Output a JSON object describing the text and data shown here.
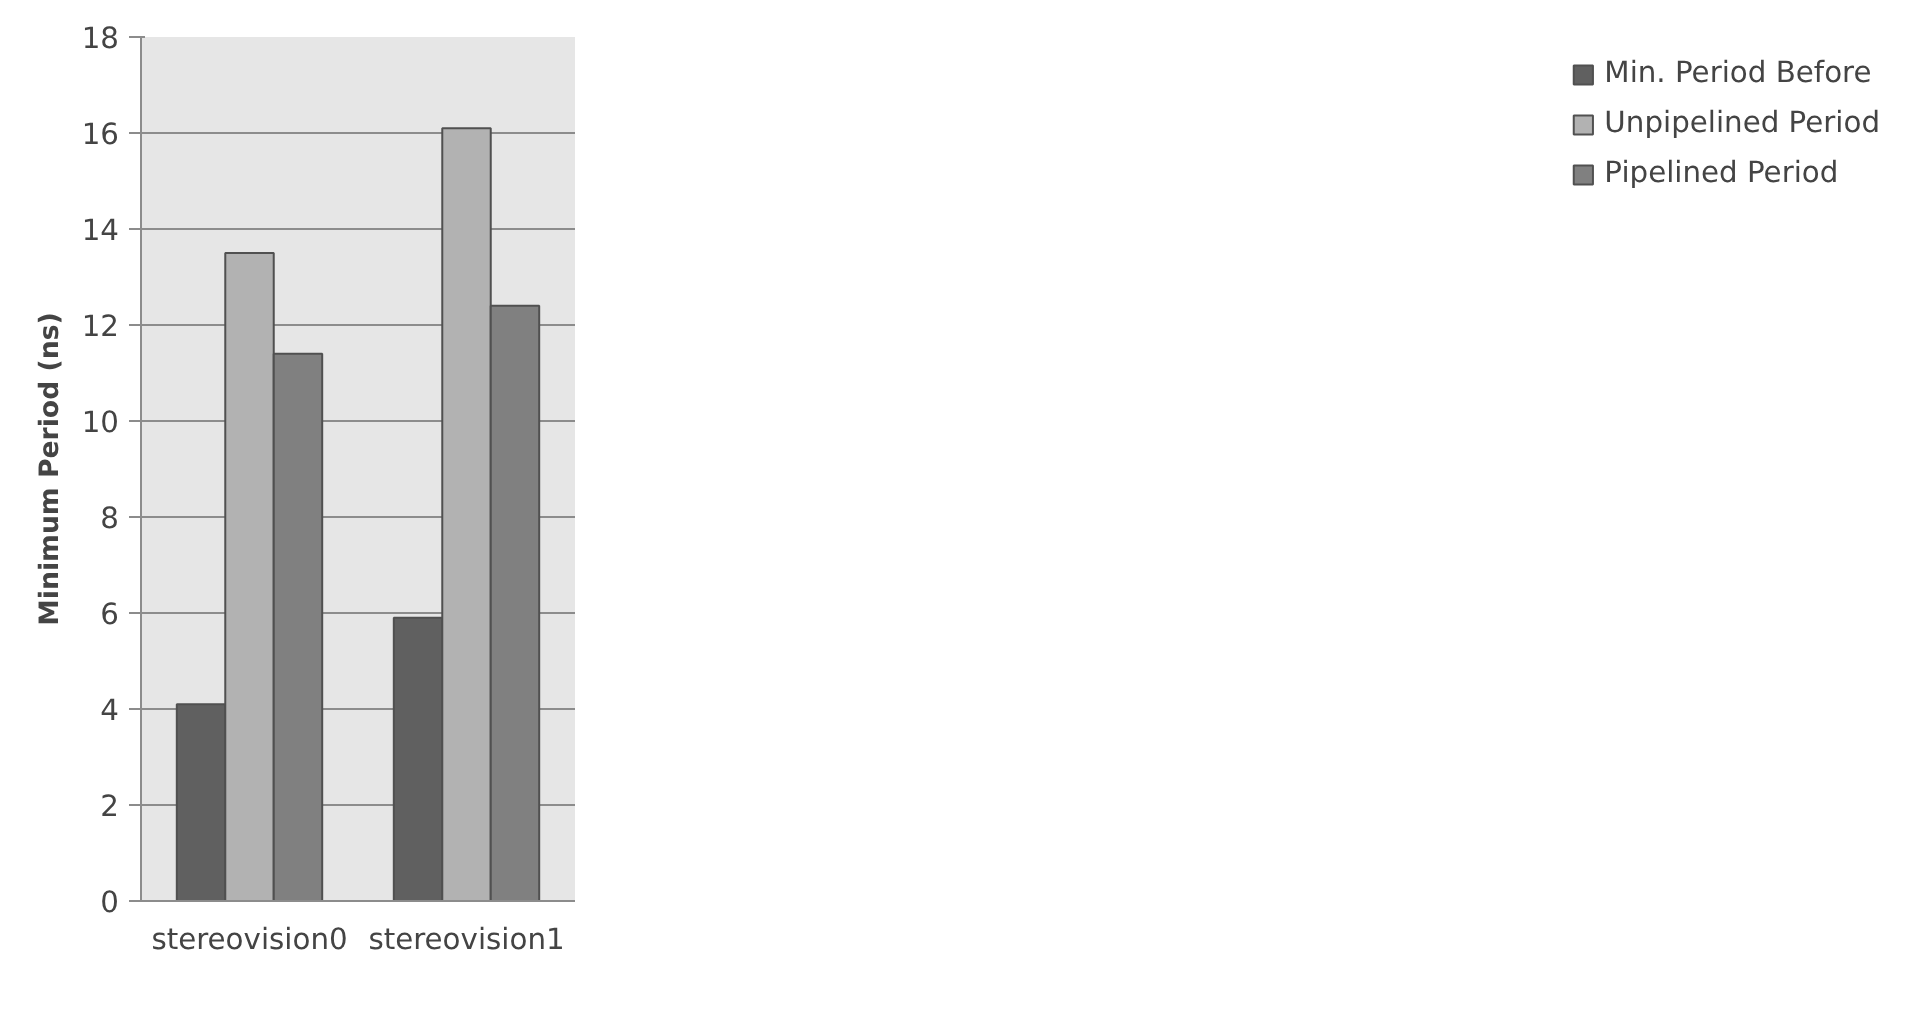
{
  "chart_data": {
    "type": "bar",
    "ylabel": "Minimum Period (ns)",
    "categories": [
      "stereovision0",
      "stereovision1"
    ],
    "series": [
      {
        "name": "Min. Period Before",
        "color": "#606060",
        "values": [
          4.1,
          5.9
        ]
      },
      {
        "name": "Unpipelined Period",
        "color": "#b2b2b2",
        "values": [
          13.5,
          16.1
        ]
      },
      {
        "name": "Pipelined Period",
        "color": "#808080",
        "values": [
          11.4,
          12.4
        ]
      }
    ],
    "ylim": [
      0,
      18
    ],
    "yticks": [
      0,
      2,
      4,
      6,
      8,
      10,
      12,
      14,
      16,
      18
    ],
    "grid": "y",
    "legend": "right"
  }
}
